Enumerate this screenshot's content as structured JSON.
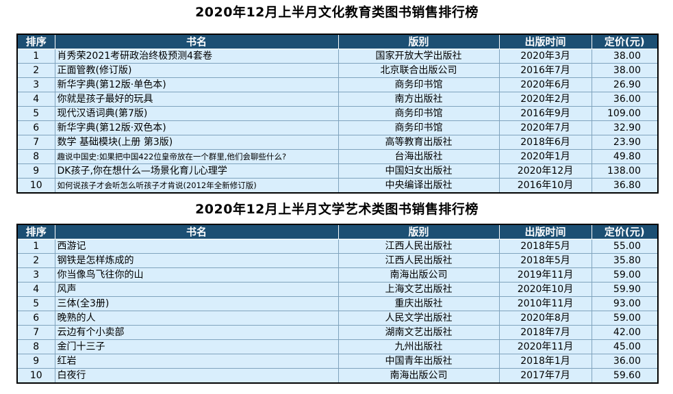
{
  "tables": [
    {
      "title": "2020年12月上半月文化教育类图书销售排行榜",
      "headers": [
        "排序",
        "书名",
        "版别",
        "出版时间",
        "定价(元)"
      ],
      "rows": [
        [
          "1",
          "肖秀荣2021考研政治终极预测4套卷",
          "国家开放大学出版社",
          "2020年3月",
          "38.00"
        ],
        [
          "2",
          "正面管教(修订版)",
          "北京联合出版公司",
          "2016年7月",
          "38.00"
        ],
        [
          "3",
          "新华字典(第12版·单色本)",
          "商务印书馆",
          "2020年6月",
          "26.90"
        ],
        [
          "4",
          "你就是孩子最好的玩具",
          "南方出版社",
          "2020年2月",
          "36.00"
        ],
        [
          "5",
          "现代汉语词典(第7版)",
          "商务印书馆",
          "2016年9月",
          "109.00"
        ],
        [
          "6",
          "新华字典(第12版·双色本)",
          "商务印书馆",
          "2020年7月",
          "32.90"
        ],
        [
          "7",
          "数学 基础模块(上册 第3版)",
          "高等教育出版社",
          "2018年6月",
          "23.90"
        ],
        [
          "8",
          "趣说中国史:如果把中国422位皇帝放在一个群里,他们会聊些什么?",
          "台海出版社",
          "2020年1月",
          "49.80"
        ],
        [
          "9",
          "DK孩子,你在想什么—场景化育儿心理学",
          "中国妇女出版社",
          "2020年12月",
          "138.00"
        ],
        [
          "10",
          "如何说孩子才会听怎么听孩子才肯说(2012年全新修订版)",
          "中央编译出版社",
          "2016年10月",
          "36.80"
        ]
      ]
    },
    {
      "title": "2020年12月上半月文学艺术类图书销售排行榜",
      "headers": [
        "排序",
        "书名",
        "版别",
        "出版时间",
        "定价(元)"
      ],
      "rows": [
        [
          "1",
          "西游记",
          "江西人民出版社",
          "2018年5月",
          "55.00"
        ],
        [
          "2",
          "钢铁是怎样炼成的",
          "江西人民出版社",
          "2018年5月",
          "35.80"
        ],
        [
          "3",
          "你当像鸟飞往你的山",
          "南海出版公司",
          "2019年11月",
          "59.00"
        ],
        [
          "4",
          "风声",
          "上海文艺出版社",
          "2020年10月",
          "59.90"
        ],
        [
          "5",
          "三体(全3册)",
          "重庆出版社",
          "2010年11月",
          "93.00"
        ],
        [
          "6",
          "晚熟的人",
          "人民文学出版社",
          "2020年8月",
          "59.00"
        ],
        [
          "7",
          "云边有个小卖部",
          "湖南文艺出版社",
          "2018年7月",
          "42.00"
        ],
        [
          "8",
          "金门十三子",
          "九州出版社",
          "2020年11月",
          "45.00"
        ],
        [
          "9",
          "红岩",
          "中国青年出版社",
          "2018年1月",
          "36.00"
        ],
        [
          "10",
          "白夜行",
          "南海出版公司",
          "2017年7月",
          "59.60"
        ]
      ]
    }
  ]
}
